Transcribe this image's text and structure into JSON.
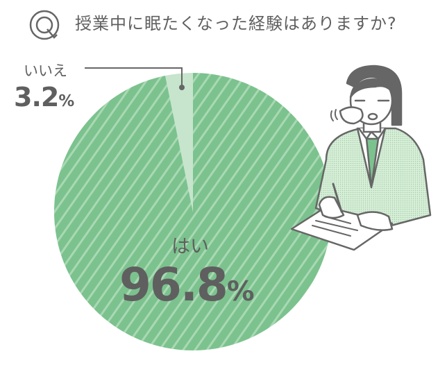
{
  "chart_data": {
    "type": "pie",
    "title": "授業中に眠たくなった経験はありますか?",
    "slices": [
      {
        "label": "はい",
        "value": 96.8,
        "display": "96.8",
        "color": "#7cc28e"
      },
      {
        "label": "いいえ",
        "value": 3.2,
        "display": "3.2",
        "color": "#c6e5cc"
      }
    ],
    "unit": "%",
    "legend": "none"
  },
  "icons": {
    "question": "q-bubble-icon",
    "illustration": "sleepy-student-illustration"
  }
}
